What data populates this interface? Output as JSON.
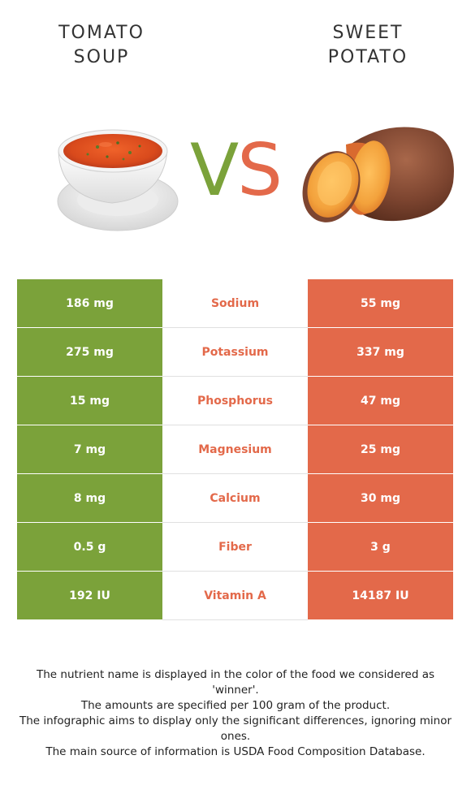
{
  "left_food": {
    "title_line1": "TOMATO",
    "title_line2": "SOUP",
    "illustration": "tomato-soup-bowl-icon",
    "color": "#7ba23a"
  },
  "right_food": {
    "title_line1": "SWEET",
    "title_line2": "POTATO",
    "illustration": "sweet-potato-icon",
    "color": "#e3694a"
  },
  "vs": {
    "v": "V",
    "s": "S"
  },
  "rows": [
    {
      "left": "186 mg",
      "nutrient": "Sodium",
      "right": "55 mg"
    },
    {
      "left": "275 mg",
      "nutrient": "Potassium",
      "right": "337 mg"
    },
    {
      "left": "15 mg",
      "nutrient": "Phosphorus",
      "right": "47 mg"
    },
    {
      "left": "7 mg",
      "nutrient": "Magnesium",
      "right": "25 mg"
    },
    {
      "left": "8 mg",
      "nutrient": "Calcium",
      "right": "30 mg"
    },
    {
      "left": "0.5 g",
      "nutrient": "Fiber",
      "right": "3 g"
    },
    {
      "left": "192 IU",
      "nutrient": "Vitamin A",
      "right": "14187 IU"
    }
  ],
  "footer": {
    "line1": "The nutrient name is displayed in the color of the food we considered as 'winner'.",
    "line2": "The amounts are specified per 100 gram of the product.",
    "line3": "The infographic aims to display only the significant differences, ignoring minor ones.",
    "line4": "The main source of information is USDA Food Composition Database."
  }
}
